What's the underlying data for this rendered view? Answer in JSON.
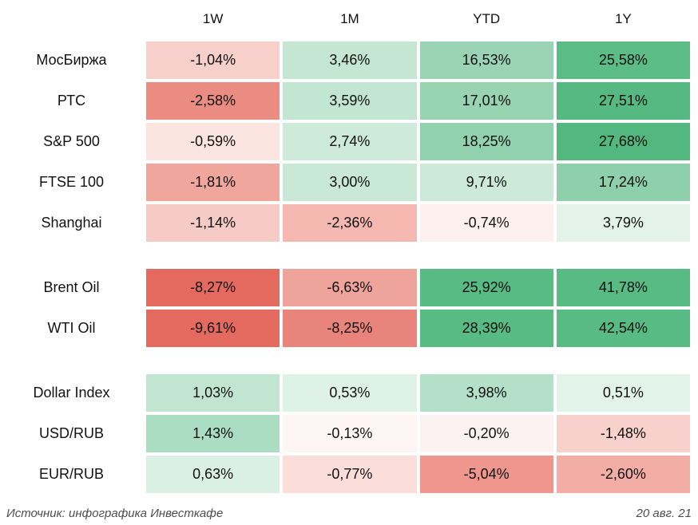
{
  "chart_data": {
    "type": "heatmap",
    "title": "",
    "legend": "none",
    "grid": "off",
    "columns": [
      "1W",
      "1M",
      "YTD",
      "1Y"
    ],
    "color_scale": {
      "strong_negative": "#e4695e",
      "neutral": "#ffffff",
      "strong_positive": "#52b87f"
    },
    "groups": [
      {
        "name": "equity-indices",
        "rows": [
          {
            "label": "МосБиржа",
            "values": [
              "-1,04%",
              "3,46%",
              "16,53%",
              "25,58%"
            ],
            "numeric": [
              -1.04,
              3.46,
              16.53,
              25.58
            ],
            "colors": [
              "#f7d0cb",
              "#c4e6d3",
              "#9ad4b4",
              "#5bbc86"
            ]
          },
          {
            "label": "РТС",
            "values": [
              "-2,58%",
              "3,59%",
              "17,01%",
              "27,51%"
            ],
            "numeric": [
              -2.58,
              3.59,
              17.01,
              27.51
            ],
            "colors": [
              "#ea8c82",
              "#c3e6d2",
              "#98d3b2",
              "#55b981"
            ]
          },
          {
            "label": "S&P 500",
            "values": [
              "-0,59%",
              "2,74%",
              "18,25%",
              "27,68%"
            ],
            "numeric": [
              -0.59,
              2.74,
              18.25,
              27.68
            ],
            "colors": [
              "#fce4e1",
              "#cdeada",
              "#91d1ae",
              "#52b87f"
            ]
          },
          {
            "label": "FTSE 100",
            "values": [
              "-1,81%",
              "3,00%",
              "9,71%",
              "17,24%"
            ],
            "numeric": [
              -1.81,
              3.0,
              9.71,
              17.24
            ],
            "colors": [
              "#f0a59d",
              "#cae8d8",
              "#cce9d9",
              "#8fd0ac"
            ]
          },
          {
            "label": "Shanghai",
            "values": [
              "-1,14%",
              "-2,36%",
              "-0,74%",
              "3,79%"
            ],
            "numeric": [
              -1.14,
              -2.36,
              -0.74,
              3.79
            ],
            "colors": [
              "#f6cbc5",
              "#f4b8b1",
              "#fdf0ee",
              "#e3f3ea"
            ]
          }
        ]
      },
      {
        "name": "oil",
        "rows": [
          {
            "label": "Brent Oil",
            "values": [
              "-8,27%",
              "-6,63%",
              "25,92%",
              "41,78%"
            ],
            "numeric": [
              -8.27,
              -6.63,
              25.92,
              41.78
            ],
            "colors": [
              "#e4695e",
              "#efa49b",
              "#57bb83",
              "#57bb83"
            ]
          },
          {
            "label": "WTI Oil",
            "values": [
              "-9,61%",
              "-8,25%",
              "28,39%",
              "42,54%"
            ],
            "numeric": [
              -9.61,
              -8.25,
              28.39,
              42.54
            ],
            "colors": [
              "#e4695e",
              "#e8847b",
              "#57bb83",
              "#57bb83"
            ]
          }
        ]
      },
      {
        "name": "currencies",
        "rows": [
          {
            "label": "Dollar Index",
            "values": [
              "1,03%",
              "0,53%",
              "3,98%",
              "0,51%"
            ],
            "numeric": [
              1.03,
              0.53,
              3.98,
              0.51
            ],
            "colors": [
              "#c2e5d2",
              "#def2e8",
              "#b4dfc8",
              "#e2f3ea"
            ]
          },
          {
            "label": "USD/RUB",
            "values": [
              "1,43%",
              "-0,13%",
              "-0,20%",
              "-1,48%"
            ],
            "numeric": [
              1.43,
              -0.13,
              -0.2,
              -1.48
            ],
            "colors": [
              "#aaddc2",
              "#fdf6f5",
              "#fcf2f1",
              "#f8d1cc"
            ]
          },
          {
            "label": "EUR/RUB",
            "values": [
              "0,63%",
              "-0,77%",
              "-5,04%",
              "-2,60%"
            ],
            "numeric": [
              0.63,
              -0.77,
              -5.04,
              -2.6
            ],
            "colors": [
              "#daf0e5",
              "#fbdeda",
              "#ef968d",
              "#f2ada5"
            ]
          }
        ]
      }
    ]
  },
  "footer": {
    "source": "Источник: инфографика Инвесткафе",
    "date": "20 авг. 21"
  }
}
